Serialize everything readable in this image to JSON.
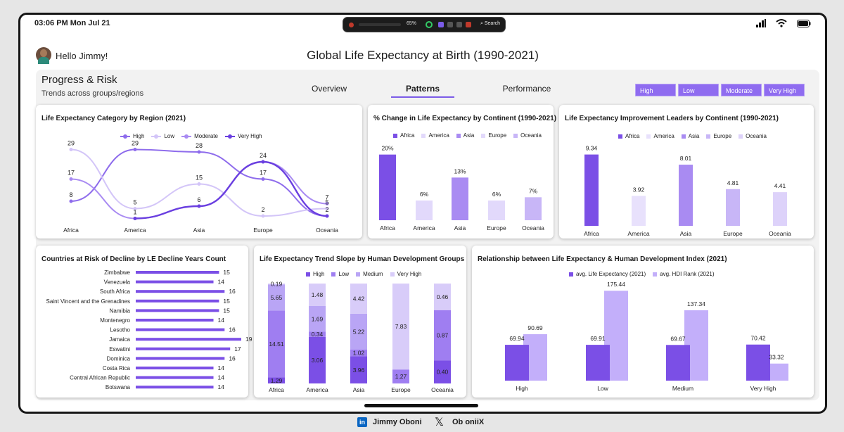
{
  "status": {
    "time": "03:06 PM  Mon Jul 21",
    "battery": "65%",
    "search": "Search"
  },
  "header": {
    "greeting": "Hello Jimmy!",
    "title": "Global Life Expectancy at Birth (1990-2021)"
  },
  "panel": {
    "title": "Progress & Risk",
    "subtitle": "Trends across groups/regions"
  },
  "tabs": [
    {
      "label": "Overview"
    },
    {
      "label": "Patterns"
    },
    {
      "label": "Performance"
    }
  ],
  "filters": [
    {
      "label": "High"
    },
    {
      "label": "Low"
    },
    {
      "label": "Moderate"
    },
    {
      "label": "Very High"
    }
  ],
  "footer": {
    "linkedin": "Jimmy Oboni",
    "x_handle": "Ob oniiX",
    "linkedin_icon": "in"
  },
  "colors": {
    "accent": "#7b5ce8",
    "dark": "#6a3fe0",
    "mid": "#9a7cf0",
    "light": "#b9a5f5",
    "pale": "#dcd0fa"
  },
  "chart_data": [
    {
      "id": "c1",
      "type": "line",
      "title": "Life Expectancy Category by Region (2021)",
      "categories": [
        "Africa",
        "America",
        "Asia",
        "Europe",
        "Oceania"
      ],
      "series": [
        {
          "name": "High",
          "values": [
            8,
            29,
            28,
            17,
            2
          ],
          "color": "#8e6cec"
        },
        {
          "name": "Low",
          "values": [
            29,
            5,
            15,
            2,
            5
          ],
          "color": "#d3c5f8"
        },
        {
          "name": "Moderate",
          "values": [
            17,
            1,
            6,
            24,
            7
          ],
          "color": "#a98bf2"
        },
        {
          "name": "Very High",
          "values": [
            null,
            1,
            6,
            24,
            2
          ],
          "color": "#6a3fe0"
        }
      ],
      "labels": [
        {
          "text": "29",
          "cat": 0,
          "v": 29
        },
        {
          "text": "17",
          "cat": 0,
          "v": 17
        },
        {
          "text": "8",
          "cat": 0,
          "v": 8
        },
        {
          "text": "29",
          "cat": 1,
          "v": 29
        },
        {
          "text": "5",
          "cat": 1,
          "v": 5
        },
        {
          "text": "1",
          "cat": 1,
          "v": 1
        },
        {
          "text": "28",
          "cat": 2,
          "v": 28
        },
        {
          "text": "15",
          "cat": 2,
          "v": 15
        },
        {
          "text": "6",
          "cat": 2,
          "v": 6
        },
        {
          "text": "24",
          "cat": 3,
          "v": 24
        },
        {
          "text": "17",
          "cat": 3,
          "v": 17
        },
        {
          "text": "2",
          "cat": 3,
          "v": 2
        },
        {
          "text": "7",
          "cat": 4,
          "v": 7
        },
        {
          "text": "5",
          "cat": 4,
          "v": 5
        },
        {
          "text": "2",
          "cat": 4,
          "v": 2
        }
      ],
      "ylim": [
        0,
        32
      ]
    },
    {
      "id": "c2",
      "type": "bar",
      "title": "% Change in Life Expectancy by Continent (1990-2021)",
      "categories": [
        "Africa",
        "America",
        "Asia",
        "Europe",
        "Oceania"
      ],
      "legend": [
        "Africa",
        "America",
        "Asia",
        "Europe",
        "Oceania"
      ],
      "values": [
        20,
        6,
        13,
        6,
        7
      ],
      "labels": [
        "20%",
        "6%",
        "13%",
        "6%",
        "7%"
      ],
      "colors": [
        "#7b4fe6",
        "#e2d9fb",
        "#a98bf2",
        "#e2d9fb",
        "#c8b6f7"
      ],
      "ylim": [
        0,
        24
      ]
    },
    {
      "id": "c3",
      "type": "bar",
      "title": "Life Expectancy Improvement Leaders by Continent (1990-2021)",
      "categories": [
        "Africa",
        "America",
        "Asia",
        "Europe",
        "Oceania"
      ],
      "legend": [
        "Africa",
        "America",
        "Asia",
        "Europe",
        "Oceania"
      ],
      "values": [
        9.34,
        3.92,
        8.01,
        4.81,
        4.41
      ],
      "labels": [
        "9.34",
        "3.92",
        "8.01",
        "4.81",
        "4.41"
      ],
      "colors": [
        "#7b4fe6",
        "#e8e1fc",
        "#a98bf2",
        "#c8b6f7",
        "#ddd2fa"
      ],
      "ylim": [
        0,
        10.5
      ]
    },
    {
      "id": "c4",
      "type": "bar",
      "title": "Countries at Risk of Decline by LE Decline Years Count",
      "categories": [
        "Zimbabwe",
        "Venezuela",
        "South Africa",
        "Saint Vincent and the Grenadines",
        "Namibia",
        "Montenegro",
        "Lesotho",
        "Jamaica",
        "Eswatini",
        "Dominica",
        "Costa Rica",
        "Central African Republic",
        "Botswana"
      ],
      "values": [
        15,
        14,
        16,
        15,
        15,
        14,
        16,
        19,
        17,
        16,
        14,
        14,
        14
      ],
      "xlim": [
        0,
        19
      ]
    },
    {
      "id": "c5",
      "type": "bar",
      "title": "Life Expectancy Trend Slope by Human Development Groups",
      "categories": [
        "Africa",
        "America",
        "Asia",
        "Europe",
        "Oceania"
      ],
      "series": [
        {
          "name": "High",
          "values": [
            1.29,
            3.06,
            3.96,
            0,
            0.4
          ],
          "labels": [
            "1.29",
            "3.06",
            "3.96",
            "",
            "0.40"
          ],
          "color": "#7b4fe6"
        },
        {
          "name": "Low",
          "values": [
            14.51,
            0.34,
            1.02,
            1.27,
            0.87
          ],
          "labels": [
            "14.51",
            "0.34",
            "1.02",
            "1.27",
            "0.87"
          ],
          "color": "#9f7ef1"
        },
        {
          "name": "Medium",
          "values": [
            5.65,
            1.69,
            5.22,
            0,
            0
          ],
          "labels": [
            "5.65",
            "1.69",
            "5.22",
            "",
            ""
          ],
          "color": "#b9a5f5"
        },
        {
          "name": "Very High",
          "values": [
            0.19,
            1.48,
            4.42,
            7.83,
            0.46
          ],
          "labels": [
            "0.19",
            "1.48",
            "4.42",
            "7.83",
            "0.46"
          ],
          "color": "#d8ccf9"
        }
      ]
    },
    {
      "id": "c6",
      "type": "bar",
      "title": "Relationship between Life Expectancy & Human Development Index (2021)",
      "categories": [
        "High",
        "Low",
        "Medium",
        "Very High"
      ],
      "series": [
        {
          "name": "avg. Life Expectancy (2021)",
          "values": [
            69.94,
            69.91,
            69.67,
            70.42
          ],
          "labels": [
            "69.94",
            "69.91",
            "69.67",
            "70.42"
          ],
          "color": "#7b4fe6"
        },
        {
          "name": "avg. HDI Rank (2021)",
          "values": [
            90.69,
            175.44,
            137.34,
            33.32
          ],
          "labels": [
            "90.69",
            "175.44",
            "137.34",
            "33.32"
          ],
          "color": "#c3affa"
        }
      ],
      "ylim": [
        0,
        195
      ]
    }
  ]
}
